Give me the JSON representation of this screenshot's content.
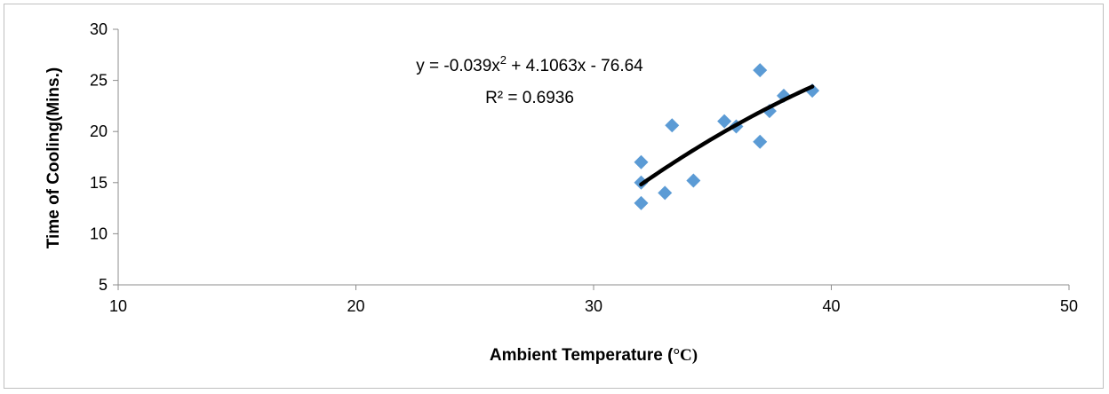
{
  "chart_data": {
    "type": "scatter",
    "xlabel_main": "Ambient Temperature (",
    "xlabel_unit": "°C",
    "xlabel_close": ")",
    "ylabel": "Time of Cooling(Mins.)",
    "xlim": [
      10,
      50
    ],
    "ylim": [
      5,
      30
    ],
    "xticks": [
      "10",
      "20",
      "30",
      "40",
      "50"
    ],
    "yticks": [
      "5",
      "10",
      "15",
      "20",
      "25",
      "30"
    ],
    "grid": false,
    "legend": "none",
    "marker_color": "#5b9bd5",
    "trendline_color": "#000000",
    "points": [
      {
        "x": 32.0,
        "y": 13.0
      },
      {
        "x": 32.0,
        "y": 15.0
      },
      {
        "x": 32.0,
        "y": 17.0
      },
      {
        "x": 33.0,
        "y": 14.0
      },
      {
        "x": 33.3,
        "y": 20.6
      },
      {
        "x": 34.2,
        "y": 15.2
      },
      {
        "x": 35.5,
        "y": 21.0
      },
      {
        "x": 36.0,
        "y": 20.5
      },
      {
        "x": 37.0,
        "y": 19.0
      },
      {
        "x": 37.0,
        "y": 26.0
      },
      {
        "x": 37.4,
        "y": 22.0
      },
      {
        "x": 38.0,
        "y": 23.5
      },
      {
        "x": 39.2,
        "y": 24.0
      }
    ],
    "trendline": {
      "kind": "polynomial",
      "coefficients": [
        -0.039,
        4.1063,
        -76.64
      ],
      "x_range": [
        32.0,
        39.2
      ],
      "equation_prefix": "y = -0.039x",
      "equation_power": "2",
      "equation_suffix": " + 4.1063x - 76.64",
      "r_squared_label": "R² = 0.6936"
    }
  }
}
